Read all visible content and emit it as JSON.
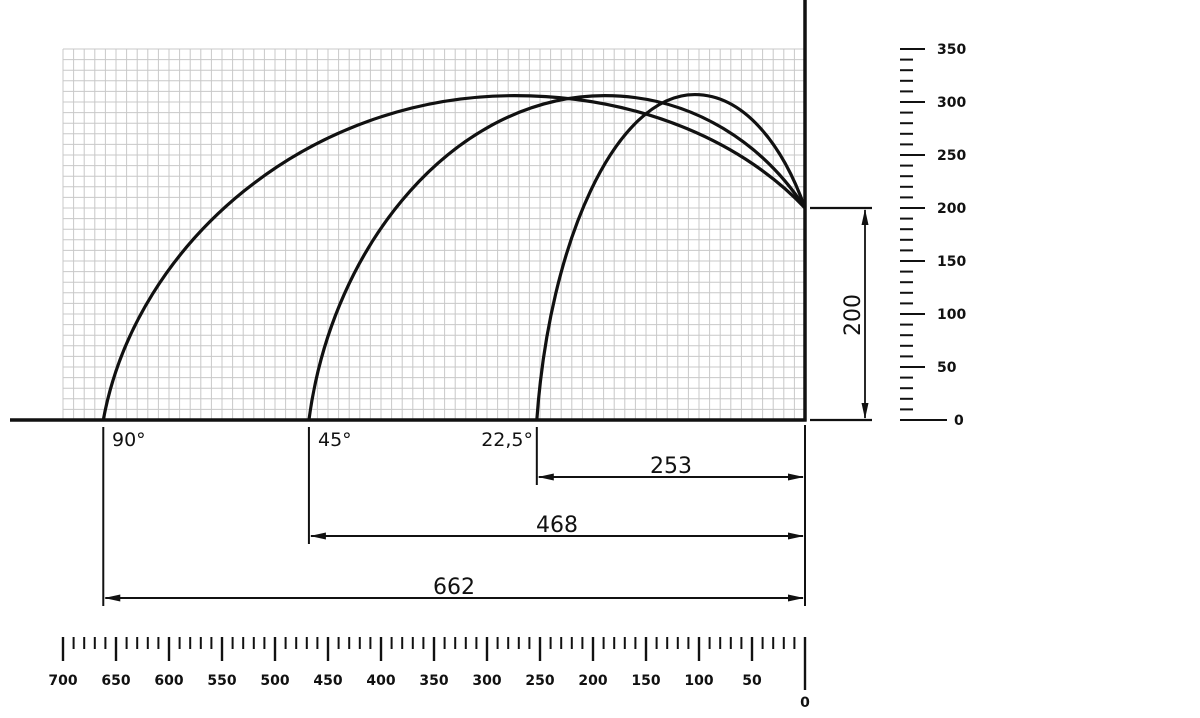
{
  "diagram": {
    "colors": {
      "ink": "#111111",
      "grid": "#c8c8c8"
    },
    "units_per_grid_cell": 10,
    "grid_extent": {
      "x_max": 700,
      "y_max": 350
    },
    "launch_height": 200,
    "trajectories": [
      {
        "angle_label": "90°",
        "range": 662,
        "peak_x": 274,
        "peak_height": 306
      },
      {
        "angle_label": "45°",
        "range": 468,
        "peak_x": 189,
        "peak_height": 306
      },
      {
        "angle_label": "22,5°",
        "range": 253,
        "peak_x": 104,
        "peak_height": 307
      }
    ],
    "dimensions": {
      "height_label": "200",
      "range_labels": [
        "662",
        "468",
        "253"
      ]
    },
    "x_scale": {
      "min": 0,
      "max": 700,
      "minor_step": 10,
      "labels": [
        "700",
        "650",
        "600",
        "550",
        "500",
        "450",
        "400",
        "350",
        "300",
        "250",
        "200",
        "150",
        "100",
        "50",
        "0"
      ]
    },
    "y_scale": {
      "min": 0,
      "max": 350,
      "minor_step": 10,
      "labels": [
        "0",
        "50",
        "100",
        "150",
        "200",
        "250",
        "300",
        "350"
      ]
    }
  }
}
